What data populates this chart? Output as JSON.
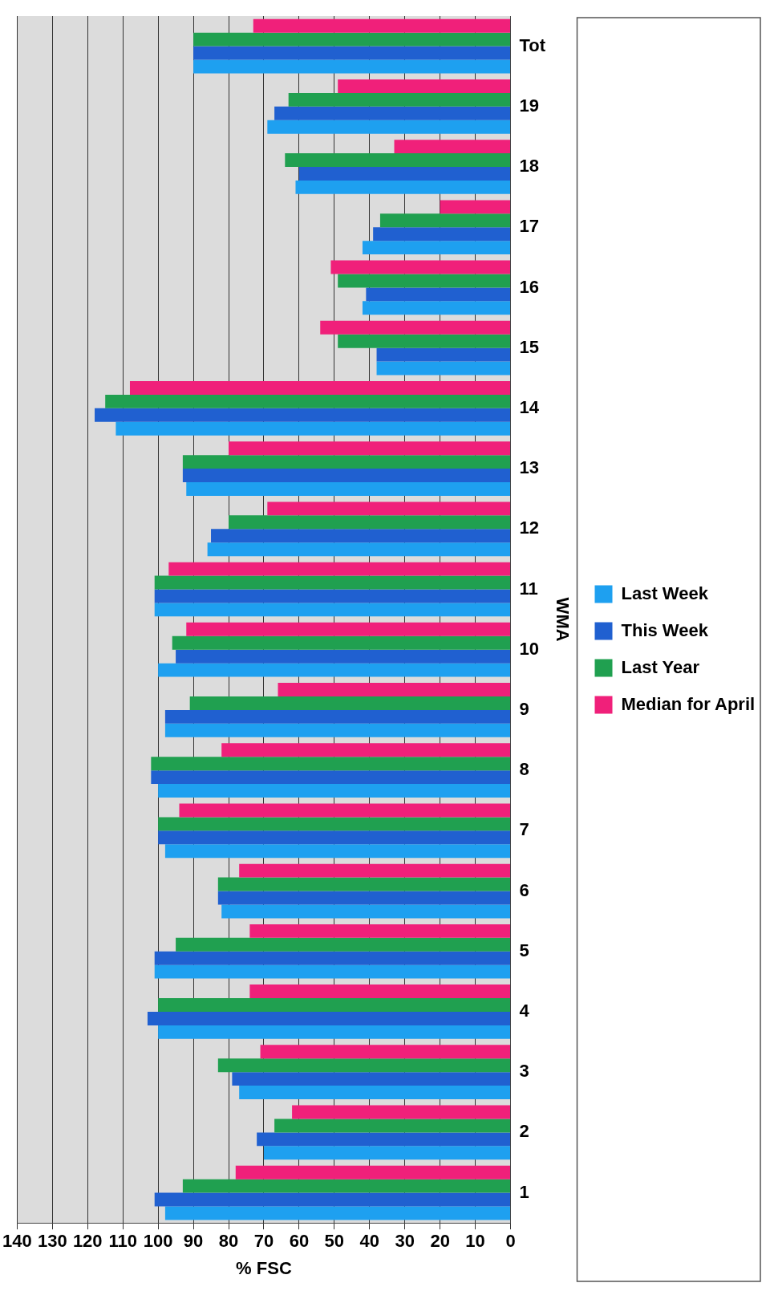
{
  "chart_data": {
    "type": "bar",
    "orientation": "horizontal",
    "xlabel": "% FSC",
    "ylabel": "WMA",
    "categories": [
      "Tot",
      "19",
      "18",
      "17",
      "16",
      "15",
      "14",
      "13",
      "12",
      "11",
      "10",
      "9",
      "8",
      "7",
      "6",
      "5",
      "4",
      "3",
      "2",
      "1"
    ],
    "series": [
      {
        "name": "Last Week",
        "color": "#1ea0f0",
        "values": [
          90,
          69,
          61,
          42,
          42,
          38,
          112,
          92,
          86,
          101,
          100,
          98,
          100,
          98,
          82,
          101,
          100,
          77,
          70,
          98
        ]
      },
      {
        "name": "This Week",
        "color": "#2060d0",
        "values": [
          90,
          67,
          60,
          39,
          41,
          38,
          118,
          93,
          85,
          101,
          95,
          98,
          102,
          100,
          83,
          101,
          103,
          79,
          72,
          101
        ]
      },
      {
        "name": "Last Year",
        "color": "#20a050",
        "values": [
          90,
          63,
          64,
          37,
          49,
          49,
          115,
          93,
          80,
          101,
          96,
          91,
          102,
          100,
          83,
          95,
          100,
          83,
          67,
          93
        ]
      },
      {
        "name": "Median for April",
        "color": "#f0207a",
        "values": [
          73,
          49,
          33,
          20,
          51,
          54,
          108,
          80,
          69,
          97,
          92,
          66,
          82,
          94,
          77,
          74,
          74,
          71,
          62,
          78
        ]
      }
    ],
    "xlim": [
      140,
      0
    ],
    "xticks": [
      140,
      130,
      120,
      110,
      100,
      90,
      80,
      70,
      60,
      50,
      40,
      30,
      20,
      10,
      0
    ],
    "grid": "x",
    "legend": "right"
  }
}
